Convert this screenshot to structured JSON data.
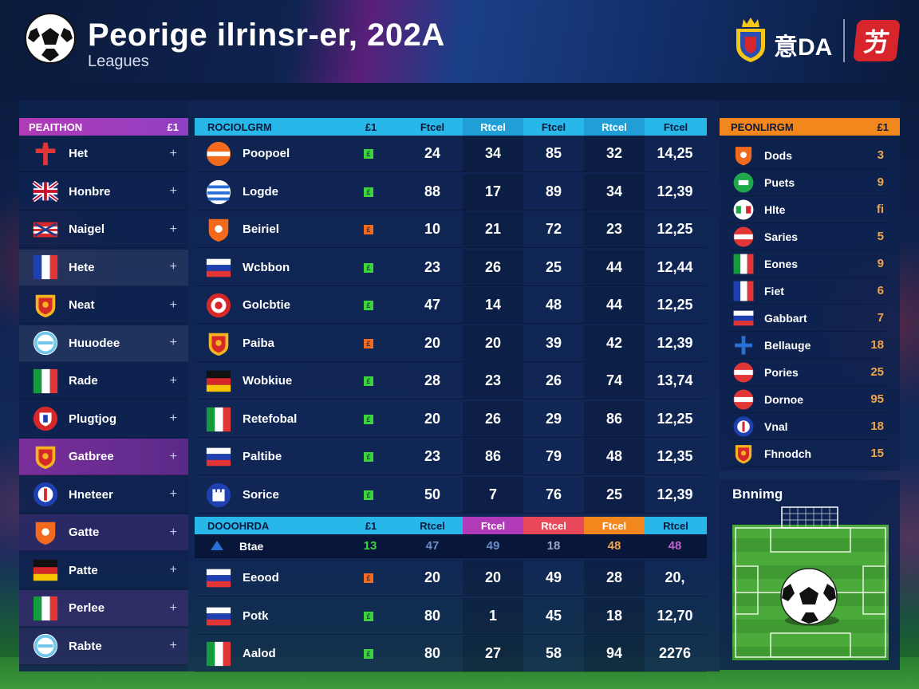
{
  "header": {
    "title": "Peorige ilrinsr-er, 202A",
    "subtitle": "Leagues",
    "brand_text": "意DA",
    "brand_badge": "艻"
  },
  "sidebar": {
    "header_label": "PEAITHON",
    "header_count": "£1",
    "items": [
      {
        "label": "Het",
        "flag": "red-cross-icon"
      },
      {
        "label": "Honbre",
        "flag": "union-jack-icon"
      },
      {
        "label": "Naigel",
        "flag": "red-blue-stripes-icon"
      },
      {
        "label": "Hete",
        "flag": "france-flag-icon"
      },
      {
        "label": "Neat",
        "flag": "crest-icon"
      },
      {
        "label": "Huuodee",
        "flag": "argentina-badge-icon"
      },
      {
        "label": "Rade",
        "flag": "italy-flag-icon"
      },
      {
        "label": "Plugtjog",
        "flag": "shield-badge-icon"
      },
      {
        "label": "Gatbree",
        "flag": "crest-icon"
      },
      {
        "label": "Hneteer",
        "flag": "round-badge-icon"
      },
      {
        "label": "Gatte",
        "flag": "orange-shield-icon"
      },
      {
        "label": "Patte",
        "flag": "germany-flag-icon"
      },
      {
        "label": "Perlee",
        "flag": "italy-flag-icon"
      },
      {
        "label": "Rabte",
        "flag": "argentina-badge-icon"
      }
    ],
    "plus": "+"
  },
  "table1": {
    "headers": [
      "ROCIOLGRM",
      "£1",
      "Ftcel",
      "Rtcel",
      "Ftcel",
      "Rtcel",
      "Ftcel"
    ],
    "rows": [
      {
        "name": "Poopoel",
        "mark": "£",
        "mark_color": "#3bd43b",
        "v": [
          "24",
          "34",
          "85",
          "32",
          "14,25"
        ],
        "flag": "orange-band-flag-icon"
      },
      {
        "name": "Logde",
        "mark": "£",
        "mark_color": "#3bd43b",
        "v": [
          "88",
          "17",
          "89",
          "34",
          "12,39"
        ],
        "flag": "greece-flag-icon"
      },
      {
        "name": "Beiriel",
        "mark": "£",
        "mark_color": "#f26a1d",
        "v": [
          "10",
          "21",
          "72",
          "23",
          "12,25"
        ],
        "flag": "orange-shield-icon"
      },
      {
        "name": "Wcbbon",
        "mark": "£",
        "mark_color": "#3bd43b",
        "v": [
          "23",
          "26",
          "25",
          "44",
          "12,44"
        ],
        "flag": "tricolor-flag-icon"
      },
      {
        "name": "Golcbtie",
        "mark": "£",
        "mark_color": "#3bd43b",
        "v": [
          "47",
          "14",
          "48",
          "44",
          "12,25"
        ],
        "flag": "red-round-badge-icon"
      },
      {
        "name": "Paiba",
        "mark": "£",
        "mark_color": "#f26a1d",
        "v": [
          "20",
          "20",
          "39",
          "42",
          "12,39"
        ],
        "flag": "crest-icon"
      },
      {
        "name": "Wobkiue",
        "mark": "£",
        "mark_color": "#3bd43b",
        "v": [
          "28",
          "23",
          "26",
          "74",
          "13,74"
        ],
        "flag": "germany-flag-icon"
      },
      {
        "name": "Retefobal",
        "mark": "£",
        "mark_color": "#3bd43b",
        "v": [
          "20",
          "26",
          "29",
          "86",
          "12,25"
        ],
        "flag": "italy-flag-icon"
      },
      {
        "name": "Paltibe",
        "mark": "£",
        "mark_color": "#3bd43b",
        "v": [
          "23",
          "86",
          "79",
          "48",
          "12,35"
        ],
        "flag": "tricolor-flag-icon"
      },
      {
        "name": "Sorice",
        "mark": "£",
        "mark_color": "#3bd43b",
        "v": [
          "50",
          "7",
          "76",
          "25",
          "12,39"
        ],
        "flag": "castle-badge-icon"
      }
    ]
  },
  "table2": {
    "headers": [
      "DOOOHRDA",
      "£1",
      "Rtcel",
      "Ftcel",
      "Rtcel",
      "Ftcel",
      "Rtcel"
    ],
    "sub_row": {
      "name": "Btae",
      "v": [
        "13",
        "47",
        "49",
        "18",
        "48",
        "48"
      ]
    },
    "rows": [
      {
        "name": "Eeood",
        "mark": "£",
        "mark_color": "#f26a1d",
        "v": [
          "20",
          "20",
          "49",
          "28",
          "20,"
        ],
        "flag": "tricolor-flag-icon"
      },
      {
        "name": "Potk",
        "mark": "£",
        "mark_color": "#3bd43b",
        "v": [
          "80",
          "1",
          "45",
          "18",
          "12,70"
        ],
        "flag": "tricolor-flag-icon"
      },
      {
        "name": "Aalod",
        "mark": "£",
        "mark_color": "#3bd43b",
        "v": [
          "80",
          "27",
          "58",
          "94",
          "2276"
        ],
        "flag": "italy-flag-icon"
      }
    ]
  },
  "rightpanel": {
    "header_label": "PEONLIRGM",
    "header_count": "£1",
    "items": [
      {
        "label": "Dods",
        "value": "3",
        "flag": "orange-shield-icon"
      },
      {
        "label": "Puets",
        "value": "9",
        "flag": "green-badge-icon"
      },
      {
        "label": "Hlte",
        "value": "fi",
        "flag": "italy-badge-icon"
      },
      {
        "label": "Saries",
        "value": "5",
        "flag": "red-white-flag-icon"
      },
      {
        "label": "Eones",
        "value": "9",
        "flag": "italy-flag-icon"
      },
      {
        "label": "Fiet",
        "value": "6",
        "flag": "france-flag-icon"
      },
      {
        "label": "Gabbart",
        "value": "7",
        "flag": "tricolor-flag-icon"
      },
      {
        "label": "Bellauge",
        "value": "18",
        "flag": "blue-cross-icon"
      },
      {
        "label": "Pories",
        "value": "25",
        "flag": "red-white-flag-icon"
      },
      {
        "label": "Dornoe",
        "value": "95",
        "flag": "red-white-flag-icon"
      },
      {
        "label": "Vnal",
        "value": "18",
        "flag": "round-badge-icon"
      },
      {
        "label": "Fhnodch",
        "value": "15",
        "flag": "crest-icon"
      }
    ]
  },
  "pitch": {
    "title": "Bnnimg"
  },
  "colors": {
    "accent_cyan": "#27b7e8",
    "accent_orange": "#f2871d",
    "accent_purple": "#b13ab8"
  }
}
